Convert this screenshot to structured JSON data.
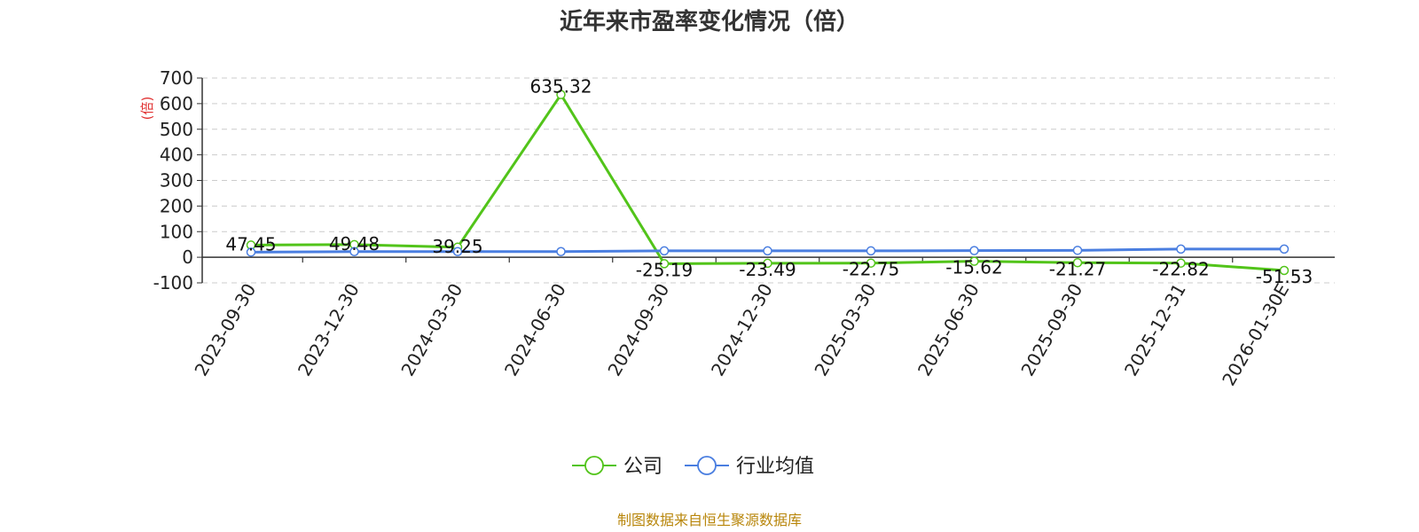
{
  "colors": {
    "company": "#52c41a",
    "industry": "#4a7ee0",
    "grid": "#cccccc",
    "ylabel": "#e03030",
    "source": "#b8860b"
  },
  "chart_data": {
    "type": "line",
    "title": "近年来市盈率变化情况（倍）",
    "ylabel": "(倍)",
    "xlabel": "",
    "ylim": [
      -100,
      700
    ],
    "yticks": [
      -100,
      0,
      100,
      200,
      300,
      400,
      500,
      600,
      700
    ],
    "grid": true,
    "legend_position": "bottom-center",
    "categories": [
      "2023-09-30",
      "2023-12-30",
      "2024-03-30",
      "2024-06-30",
      "2024-09-30",
      "2024-12-30",
      "2025-03-30",
      "2025-06-30",
      "2025-09-30",
      "2025-12-31",
      "2026-01-30E"
    ],
    "series": [
      {
        "name": "公司",
        "values": [
          47.45,
          49.48,
          39.25,
          635.32,
          -25.19,
          -23.49,
          -22.75,
          -15.62,
          -21.27,
          -22.82,
          -51.53
        ],
        "labels": [
          "47.45",
          "49.48",
          "39.25",
          "635.32",
          "-25.19",
          "-23.49",
          "-22.75",
          "-15.62",
          "-21.27",
          "-22.82",
          "-51.53"
        ]
      },
      {
        "name": "行业均值",
        "values": [
          20,
          22,
          22,
          22,
          25,
          25,
          25,
          26,
          27,
          32,
          32
        ]
      }
    ],
    "source_text": "制图数据来自恒生聚源数据库"
  }
}
